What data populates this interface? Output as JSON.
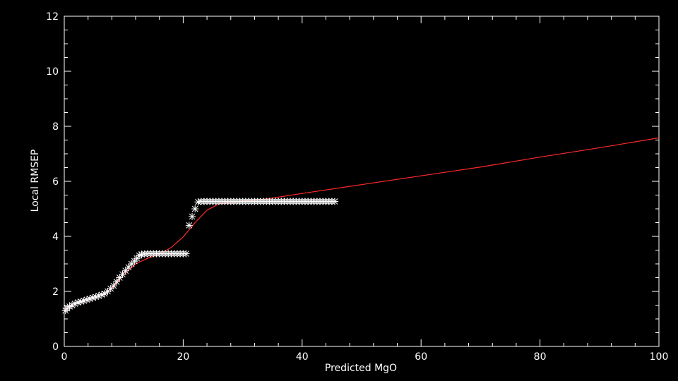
{
  "chart_data": {
    "type": "scatter",
    "title": "",
    "xlabel": "Predicted MgO",
    "ylabel": "Local RMSEP",
    "xlim": [
      0,
      100
    ],
    "ylim": [
      0,
      12
    ],
    "x_ticks": [
      "0",
      "20",
      "40",
      "60",
      "80",
      "100"
    ],
    "y_ticks": [
      "0",
      "2",
      "4",
      "6",
      "8",
      "10",
      "12"
    ],
    "grid": false,
    "legend": "none",
    "colors": {
      "background": "#000000",
      "axes": "#ffffff",
      "markers": "#ffffff",
      "fit_line": "#ff2a2a"
    },
    "series": [
      {
        "kind": "markers",
        "marker": "asterisk",
        "points": [
          [
            0.2,
            1.3
          ],
          [
            0.5,
            1.38
          ],
          [
            0.9,
            1.45
          ],
          [
            1.3,
            1.5
          ],
          [
            1.8,
            1.55
          ],
          [
            2.3,
            1.6
          ],
          [
            2.8,
            1.63
          ],
          [
            3.3,
            1.66
          ],
          [
            3.8,
            1.7
          ],
          [
            4.3,
            1.73
          ],
          [
            4.8,
            1.77
          ],
          [
            5.3,
            1.8
          ],
          [
            5.8,
            1.84
          ],
          [
            6.3,
            1.88
          ],
          [
            6.8,
            1.92
          ],
          [
            7.3,
            2.0
          ],
          [
            7.8,
            2.1
          ],
          [
            8.3,
            2.2
          ],
          [
            8.8,
            2.35
          ],
          [
            9.3,
            2.5
          ],
          [
            9.8,
            2.62
          ],
          [
            10.3,
            2.75
          ],
          [
            10.8,
            2.88
          ],
          [
            11.3,
            3.0
          ],
          [
            11.8,
            3.1
          ],
          [
            12.2,
            3.2
          ],
          [
            12.6,
            3.3
          ],
          [
            13.0,
            3.35
          ],
          [
            13.5,
            3.36
          ],
          [
            14.0,
            3.37
          ],
          [
            14.5,
            3.37
          ],
          [
            15.0,
            3.37
          ],
          [
            15.5,
            3.37
          ],
          [
            16.0,
            3.37
          ],
          [
            16.5,
            3.37
          ],
          [
            17.0,
            3.37
          ],
          [
            17.5,
            3.37
          ],
          [
            18.0,
            3.37
          ],
          [
            18.5,
            3.37
          ],
          [
            19.0,
            3.37
          ],
          [
            19.5,
            3.37
          ],
          [
            20.0,
            3.37
          ],
          [
            20.5,
            3.37
          ],
          [
            21.0,
            4.4
          ],
          [
            21.5,
            4.72
          ],
          [
            22.0,
            5.0
          ],
          [
            22.5,
            5.25
          ],
          [
            23.0,
            5.27
          ],
          [
            23.5,
            5.27
          ],
          [
            24.0,
            5.27
          ],
          [
            24.5,
            5.27
          ],
          [
            25.0,
            5.27
          ],
          [
            25.5,
            5.27
          ],
          [
            26.0,
            5.27
          ],
          [
            26.5,
            5.27
          ],
          [
            27.0,
            5.27
          ],
          [
            27.5,
            5.27
          ],
          [
            28.0,
            5.27
          ],
          [
            28.5,
            5.27
          ],
          [
            29.0,
            5.27
          ],
          [
            29.5,
            5.27
          ],
          [
            30.0,
            5.27
          ],
          [
            30.5,
            5.27
          ],
          [
            31.0,
            5.27
          ],
          [
            31.5,
            5.27
          ],
          [
            32.0,
            5.27
          ],
          [
            32.5,
            5.27
          ],
          [
            33.0,
            5.27
          ],
          [
            33.5,
            5.27
          ],
          [
            34.0,
            5.27
          ],
          [
            34.5,
            5.27
          ],
          [
            35.0,
            5.27
          ],
          [
            35.5,
            5.27
          ],
          [
            36.0,
            5.27
          ],
          [
            36.5,
            5.27
          ],
          [
            37.0,
            5.27
          ],
          [
            37.5,
            5.27
          ],
          [
            38.0,
            5.27
          ],
          [
            38.5,
            5.27
          ],
          [
            39.0,
            5.27
          ],
          [
            39.5,
            5.27
          ],
          [
            40.0,
            5.27
          ],
          [
            40.5,
            5.27
          ],
          [
            41.0,
            5.27
          ],
          [
            41.5,
            5.27
          ],
          [
            42.0,
            5.27
          ],
          [
            42.5,
            5.27
          ],
          [
            43.0,
            5.27
          ],
          [
            43.5,
            5.27
          ],
          [
            44.0,
            5.27
          ],
          [
            44.5,
            5.27
          ],
          [
            45.0,
            5.27
          ],
          [
            45.5,
            5.27
          ]
        ]
      },
      {
        "kind": "line",
        "points": [
          [
            0,
            1.35
          ],
          [
            2,
            1.55
          ],
          [
            4,
            1.68
          ],
          [
            6,
            1.82
          ],
          [
            8,
            2.1
          ],
          [
            10,
            2.6
          ],
          [
            12,
            3.0
          ],
          [
            14,
            3.2
          ],
          [
            16,
            3.35
          ],
          [
            18,
            3.6
          ],
          [
            20,
            3.98
          ],
          [
            22,
            4.5
          ],
          [
            24,
            4.95
          ],
          [
            26,
            5.18
          ],
          [
            28,
            5.24
          ],
          [
            30,
            5.28
          ],
          [
            32,
            5.32
          ],
          [
            34,
            5.36
          ],
          [
            40,
            5.56
          ],
          [
            50,
            5.88
          ],
          [
            60,
            6.2
          ],
          [
            70,
            6.52
          ],
          [
            80,
            6.88
          ],
          [
            90,
            7.22
          ],
          [
            100,
            7.58
          ]
        ]
      }
    ]
  }
}
